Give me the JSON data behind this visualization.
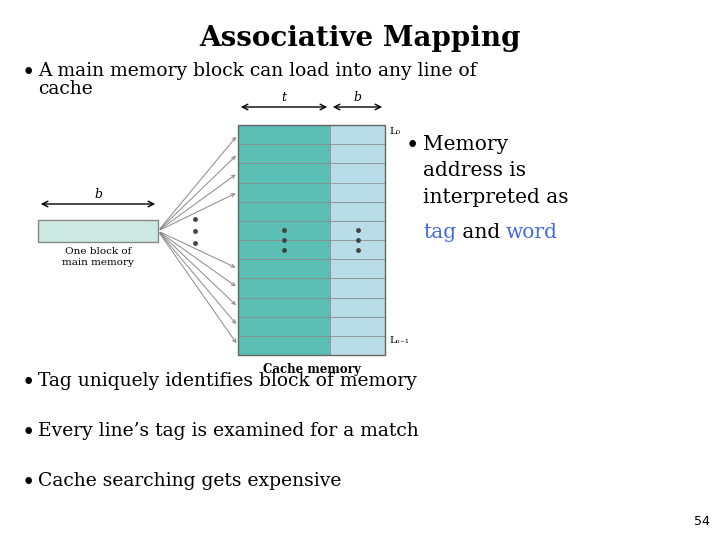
{
  "title": "Associative Mapping",
  "title_fontsize": 20,
  "title_fontweight": "bold",
  "bg_color": "#ffffff",
  "bullet1a": "A main memory block can load into any line of",
  "bullet1b": "cache",
  "bullet_tag_color": "#4169e1",
  "bullet_word_color": "#4169e1",
  "bullet3": "Tag uniquely identifies block of memory",
  "bullet4": "Every line’s tag is examined for a match",
  "bullet5": "Cache searching gets expensive",
  "bullet_fontsize": 13.5,
  "page_num": "54",
  "tag_color": "#5bbfb5",
  "word_color": "#b8dde8",
  "mem_color": "#cce8e0",
  "n_rows": 12
}
